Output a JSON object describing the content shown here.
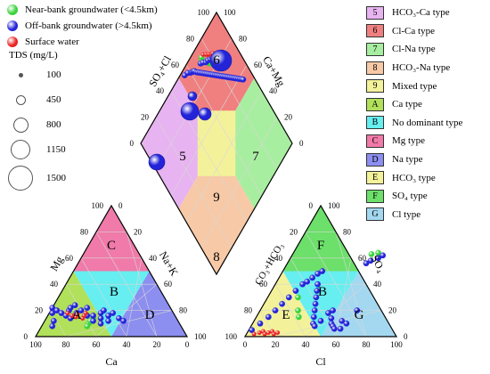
{
  "groups": [
    {
      "label": "Near-bank groundwater (<4.5km)",
      "color": "#39d339"
    },
    {
      "label": "Off-bank groundwater (>4.5km)",
      "color": "#2323d8"
    },
    {
      "label": "Surface water",
      "color": "#e82222"
    }
  ],
  "tds": {
    "title": "TDS (mg/L)",
    "levels": [
      {
        "value": "100",
        "dia": 3
      },
      {
        "value": "450",
        "dia": 9
      },
      {
        "value": "800",
        "dia": 15
      },
      {
        "value": "1150",
        "dia": 20
      },
      {
        "value": "1500",
        "dia": 26
      }
    ]
  },
  "types": [
    {
      "code": "5",
      "label": "HCO₃-Ca type",
      "color": "#e7b3f0"
    },
    {
      "code": "6",
      "label": "Cl-Ca type",
      "color": "#f08080"
    },
    {
      "code": "7",
      "label": "Cl-Na type",
      "color": "#a8eea0"
    },
    {
      "code": "8",
      "label": "HCO₃-Na type",
      "color": "#f7c9a6"
    },
    {
      "code": "9",
      "label": "Mixed type",
      "color": "#f3f29a"
    },
    {
      "code": "A",
      "label": "Ca type",
      "color": "#b1e05a"
    },
    {
      "code": "B",
      "label": "No dominant type",
      "color": "#66eef0"
    },
    {
      "code": "C",
      "label": "Mg type",
      "color": "#f07aa9"
    },
    {
      "code": "D",
      "label": "Na type",
      "color": "#8c8ef0"
    },
    {
      "code": "E",
      "label": "HCO₃ type",
      "color": "#f3f29a"
    },
    {
      "code": "F",
      "label": "SO₄ type",
      "color": "#6ce06a"
    },
    {
      "code": "G",
      "label": "Cl type",
      "color": "#a3d8f0"
    }
  ],
  "axes": {
    "ca": "Ca",
    "cl": "Cl",
    "mg": "Mg",
    "nak": "Na+K",
    "so4": "SO₄",
    "co3": "CO₃+HCO₃",
    "so4cl": "SO₄+Cl",
    "camg": "Ca+Mg"
  },
  "ticks": [
    "0",
    "20",
    "40",
    "60",
    "80",
    "100"
  ],
  "chart_data": {
    "type": "scatter",
    "diagram": "piper",
    "cation_triangle_labels": [
      "A",
      "B",
      "C",
      "D"
    ],
    "anion_triangle_labels": [
      "E",
      "F",
      "G",
      "B"
    ],
    "diamond_labels": [
      "5",
      "6",
      "7",
      "8",
      "9"
    ],
    "series": [
      {
        "name": "Near-bank groundwater (<4.5km)",
        "cation": [
          [
            60,
            10
          ],
          [
            55,
            14
          ],
          [
            62,
            8
          ],
          [
            58,
            12
          ]
        ],
        "anion": [
          [
            20,
            30
          ],
          [
            25,
            20
          ],
          [
            28,
            15
          ],
          [
            52,
            63
          ],
          [
            56,
            64
          ]
        ],
        "diamond": [
          [
            76,
            75
          ],
          [
            75,
            78
          ],
          [
            72,
            86
          ],
          [
            73,
            88
          ],
          [
            79,
            73
          ],
          [
            80,
            74
          ]
        ]
      },
      {
        "name": "Off-bank groundwater (>4.5km)",
        "cation": [
          [
            85,
            8
          ],
          [
            82,
            12
          ],
          [
            80,
            18
          ],
          [
            78,
            22
          ],
          [
            76,
            20
          ],
          [
            74,
            18
          ],
          [
            72,
            16
          ],
          [
            70,
            14
          ],
          [
            68,
            20
          ],
          [
            66,
            22
          ],
          [
            64,
            18
          ],
          [
            62,
            24
          ],
          [
            60,
            20
          ],
          [
            58,
            16
          ],
          [
            56,
            12
          ],
          [
            55,
            22
          ],
          [
            54,
            16
          ],
          [
            52,
            10
          ],
          [
            50,
            14
          ],
          [
            48,
            18
          ],
          [
            46,
            12
          ],
          [
            45,
            20
          ],
          [
            44,
            16
          ],
          [
            40,
            18
          ],
          [
            38,
            14
          ],
          [
            36,
            12
          ]
        ],
        "anion": [
          [
            2,
            5
          ],
          [
            5,
            10
          ],
          [
            8,
            15
          ],
          [
            10,
            20
          ],
          [
            12,
            25
          ],
          [
            14,
            30
          ],
          [
            16,
            35
          ],
          [
            18,
            40
          ],
          [
            20,
            42
          ],
          [
            22,
            45
          ],
          [
            24,
            48
          ],
          [
            26,
            50
          ],
          [
            28,
            40
          ],
          [
            30,
            35
          ],
          [
            32,
            30
          ],
          [
            34,
            25
          ],
          [
            36,
            20
          ],
          [
            38,
            15
          ],
          [
            40,
            10
          ],
          [
            42,
            8
          ],
          [
            44,
            12
          ],
          [
            46,
            18
          ],
          [
            48,
            20
          ],
          [
            50,
            14
          ],
          [
            52,
            10
          ],
          [
            54,
            8
          ],
          [
            56,
            6
          ],
          [
            58,
            12
          ],
          [
            60,
            6
          ],
          [
            62,
            10
          ],
          [
            64,
            20
          ],
          [
            52,
            56
          ],
          [
            54,
            58
          ],
          [
            58,
            60
          ],
          [
            60,
            62
          ]
        ],
        "diamond": [
          [
            55,
            95
          ],
          [
            58,
            93
          ],
          [
            60,
            90
          ],
          [
            61,
            89
          ],
          [
            62,
            88
          ],
          [
            63,
            87
          ],
          [
            64,
            84
          ],
          [
            65,
            82
          ],
          [
            66,
            80
          ],
          [
            67,
            78
          ],
          [
            68,
            76
          ],
          [
            69,
            74
          ],
          [
            70,
            72
          ],
          [
            71,
            70
          ],
          [
            72,
            68
          ],
          [
            73,
            66
          ],
          [
            74,
            64
          ],
          [
            75,
            62
          ],
          [
            76,
            60
          ],
          [
            77,
            58
          ],
          [
            78,
            56
          ],
          [
            79,
            54
          ],
          [
            80,
            52
          ],
          [
            81,
            50
          ],
          [
            82,
            48
          ],
          [
            83,
            46
          ],
          [
            84,
            44
          ],
          [
            85,
            42
          ],
          [
            86,
            40
          ],
          [
            87,
            38
          ],
          [
            88,
            36
          ],
          [
            89,
            34
          ],
          [
            90,
            32
          ],
          [
            91,
            30
          ],
          [
            92,
            28
          ],
          [
            70,
            85
          ],
          [
            72,
            83
          ],
          [
            74,
            80
          ],
          [
            76,
            79
          ],
          [
            78,
            77
          ],
          [
            80,
            76
          ],
          [
            82,
            74
          ],
          [
            84,
            72
          ]
        ]
      },
      {
        "name": "Surface water",
        "cation": [
          [
            70,
            18
          ],
          [
            68,
            16
          ],
          [
            66,
            15
          ],
          [
            64,
            17
          ],
          [
            62,
            14
          ],
          [
            60,
            16
          ],
          [
            58,
            18
          ]
        ],
        "anion": [
          [
            5,
            2
          ],
          [
            8,
            3
          ],
          [
            10,
            4
          ],
          [
            12,
            2
          ],
          [
            14,
            3
          ],
          [
            16,
            4
          ],
          [
            18,
            2
          ],
          [
            20,
            3
          ]
        ],
        "diamond": [
          [
            75,
            88
          ],
          [
            77,
            85
          ],
          [
            78,
            83
          ],
          [
            79,
            82
          ],
          [
            80,
            80
          ],
          [
            81,
            79
          ],
          [
            82,
            78
          ]
        ]
      }
    ]
  }
}
